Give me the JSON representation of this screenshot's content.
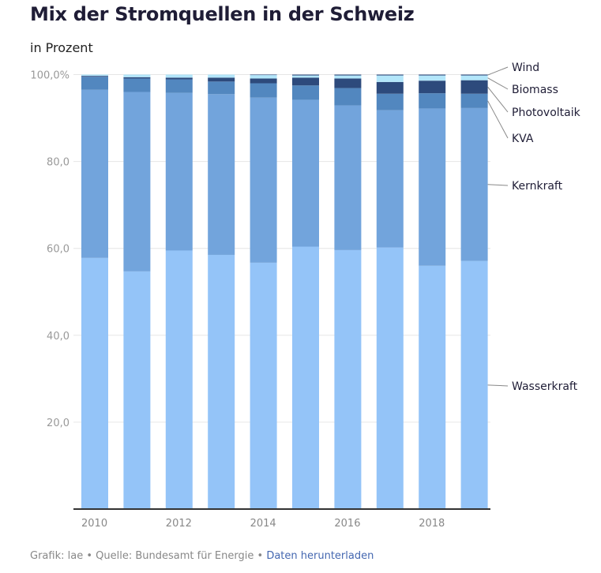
{
  "header": {
    "title": "Mix der Stromquellen in der Schweiz",
    "subtitle": "in Prozent"
  },
  "footer": {
    "credit": "Grafik: lae",
    "separator": "•",
    "source": "Quelle: Bundesamt für Energie",
    "download_link": "Daten herunterladen"
  },
  "chart_data": {
    "type": "bar",
    "stacked": true,
    "title": "Mix der Stromquellen in der Schweiz",
    "subtitle": "in Prozent",
    "xlabel": "",
    "ylabel": "",
    "ylim": [
      0,
      100
    ],
    "yticks": [
      20,
      40,
      60,
      80,
      100
    ],
    "ytick_labels": [
      "20,0",
      "40,0",
      "60,0",
      "80,0",
      "100,0%"
    ],
    "categories": [
      "2010",
      "2011",
      "2012",
      "2013",
      "2014",
      "2015",
      "2016",
      "2017",
      "2018",
      "2019"
    ],
    "xtick_labels": [
      "2010",
      "",
      "2012",
      "",
      "2014",
      "",
      "2016",
      "",
      "2018",
      ""
    ],
    "grid": true,
    "legend": "right (direct labels)",
    "series": [
      {
        "name": "Wasserkraft",
        "color": "#94c4f8",
        "values": [
          57.8,
          54.7,
          59.5,
          58.5,
          56.7,
          60.4,
          59.6,
          60.2,
          56.0,
          57.1
        ]
      },
      {
        "name": "Kernkraft",
        "color": "#72a4dc",
        "values": [
          38.7,
          41.3,
          36.3,
          37.0,
          38.0,
          33.8,
          33.3,
          31.6,
          36.2,
          35.2
        ]
      },
      {
        "name": "KVA",
        "color": "#5287bf",
        "values": [
          3.0,
          3.1,
          3.1,
          2.9,
          3.3,
          3.3,
          4.0,
          3.8,
          3.5,
          3.3
        ]
      },
      {
        "name": "Photovoltaik",
        "color": "#2d4a7c",
        "values": [
          0.2,
          0.3,
          0.4,
          0.9,
          1.1,
          1.8,
          2.2,
          2.7,
          2.9,
          3.1
        ]
      },
      {
        "name": "Biomass",
        "color": "#b3e6fa",
        "values": [
          0.3,
          0.6,
          0.7,
          0.7,
          0.8,
          0.5,
          0.7,
          1.5,
          1.2,
          1.1
        ]
      },
      {
        "name": "Wind",
        "color": "#2e4a7d",
        "values": [
          0.0,
          0.0,
          0.0,
          0.0,
          0.1,
          0.2,
          0.2,
          0.2,
          0.2,
          0.2
        ]
      }
    ],
    "legend_order": [
      "Wind",
      "Biomass",
      "Photovoltaik",
      "KVA",
      "Kernkraft",
      "Wasserkraft"
    ]
  }
}
